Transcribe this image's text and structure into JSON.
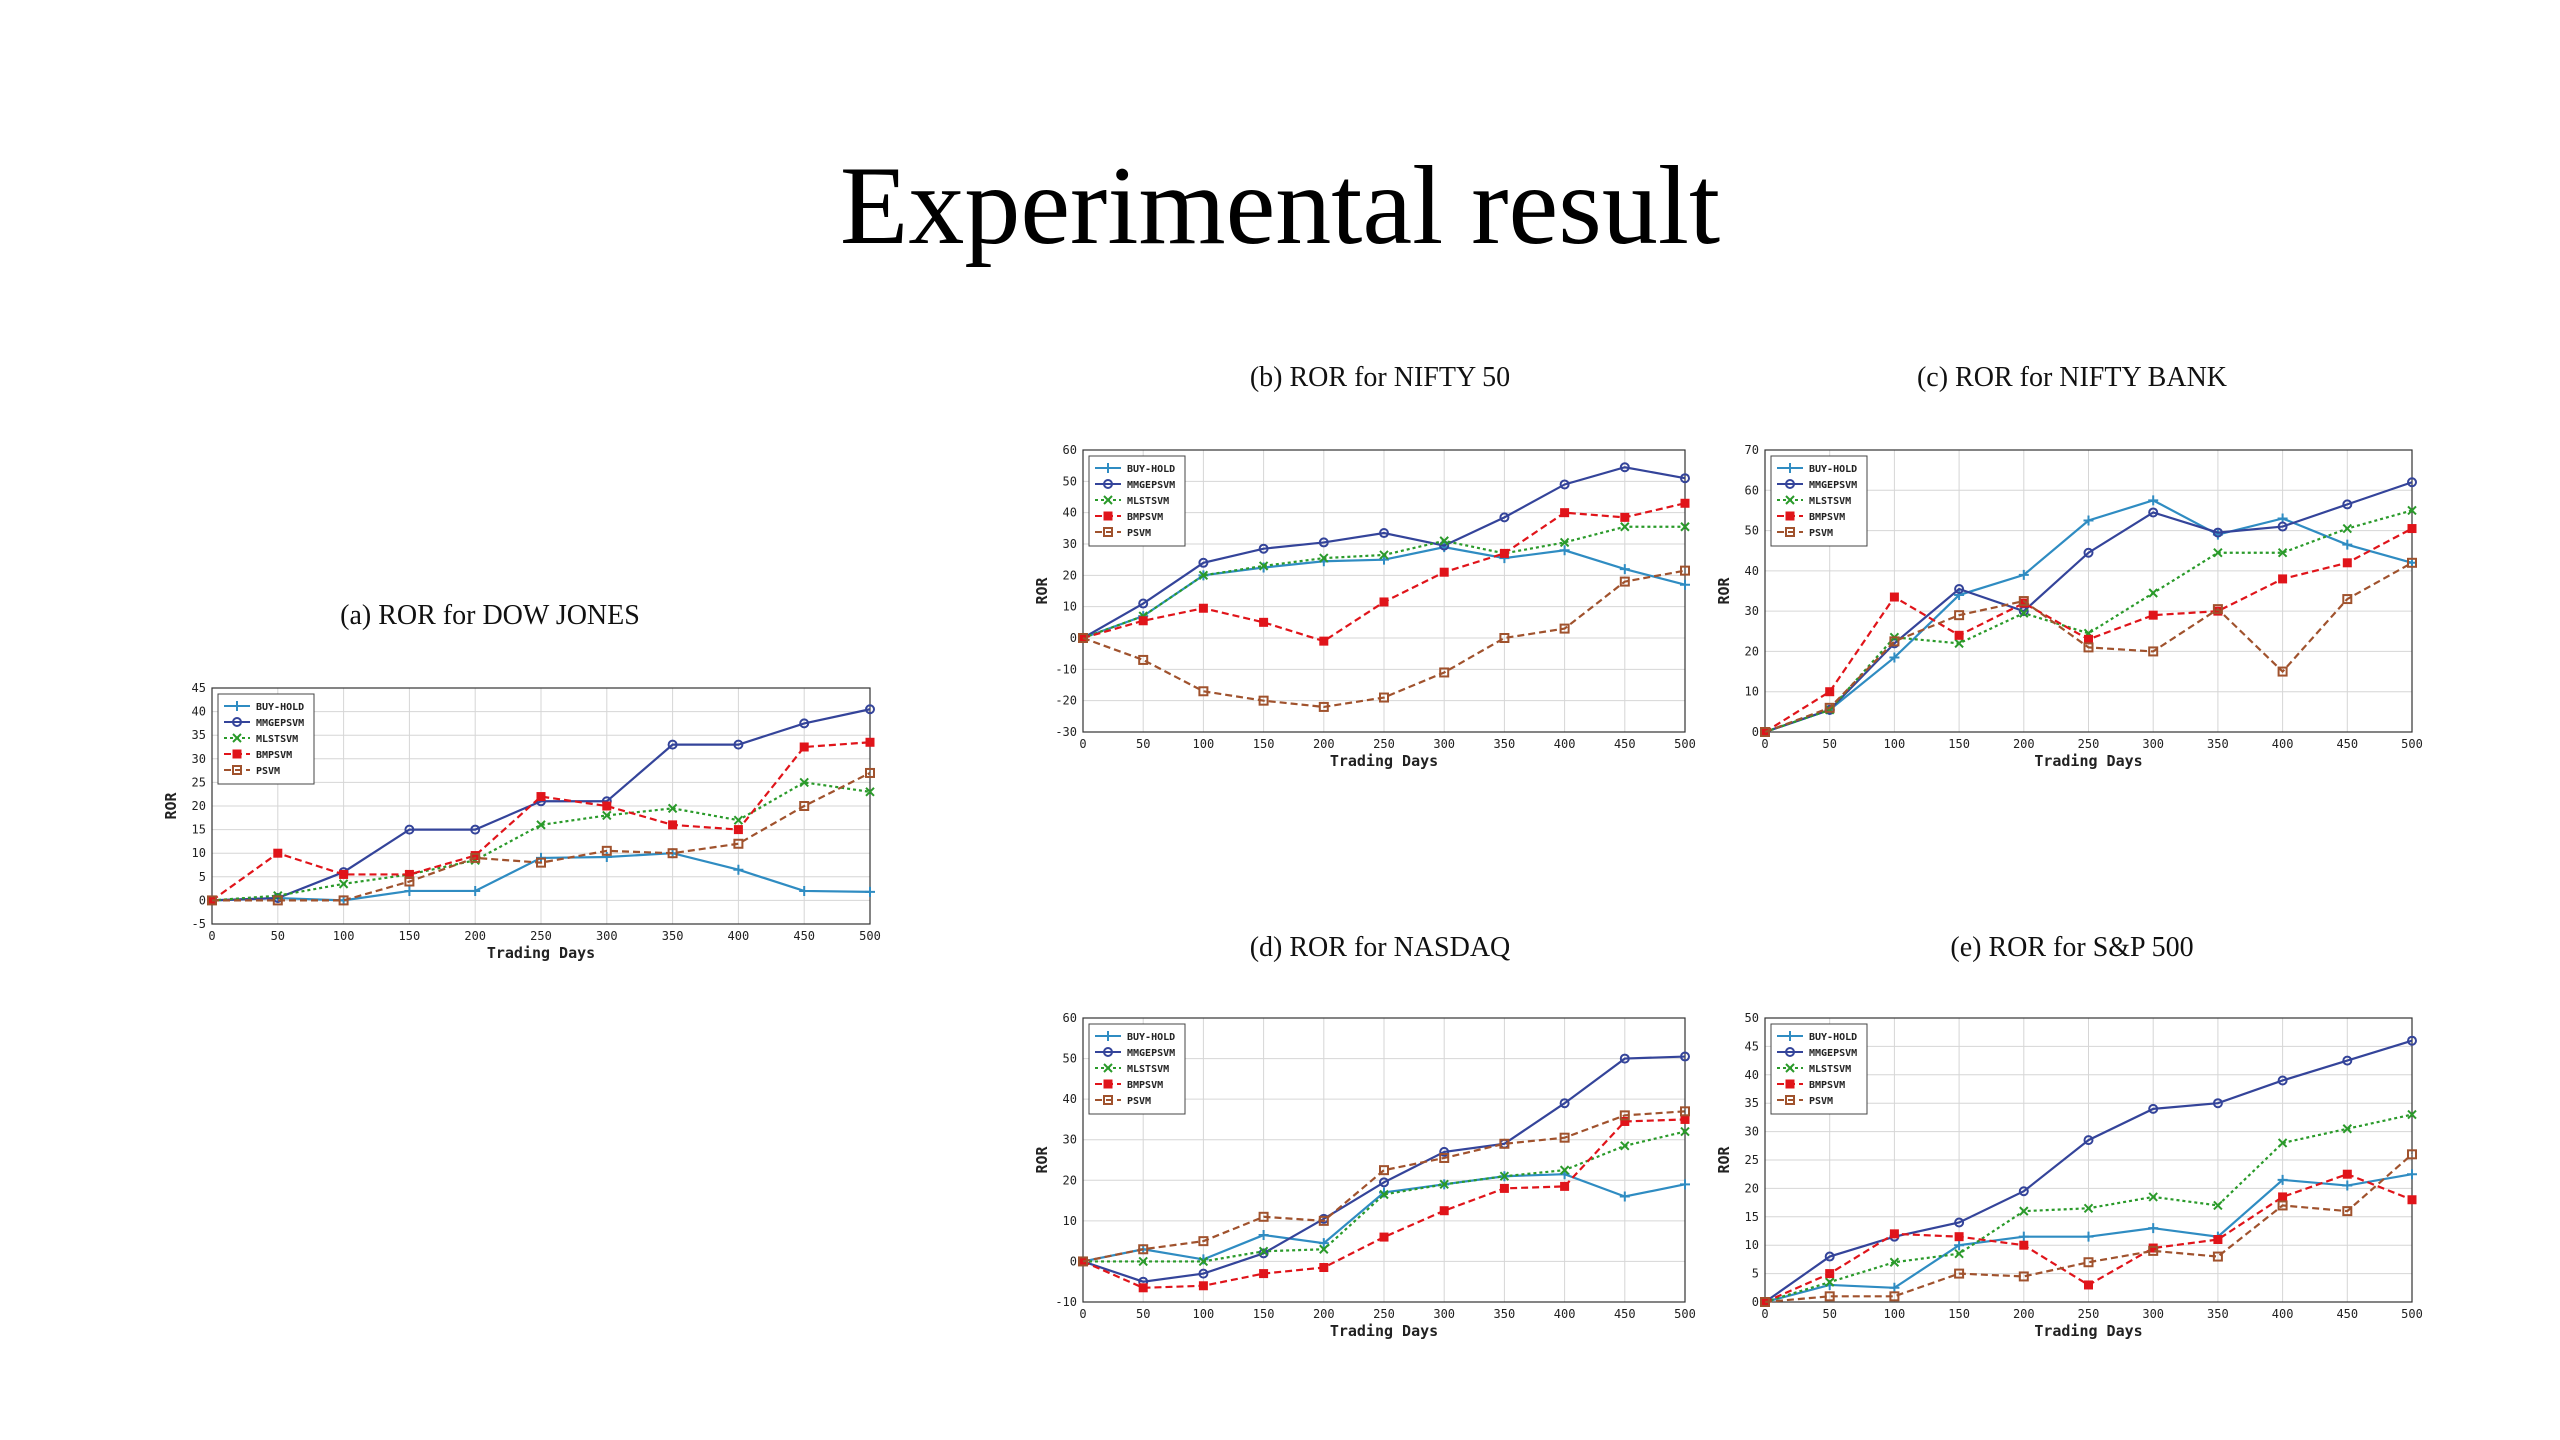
{
  "title": "Experimental result",
  "chart_data": [
    {
      "id": "dow",
      "type": "line",
      "title": "(a) ROR for DOW JONES",
      "xlabel": "Trading Days",
      "ylabel": "ROR",
      "grid": true,
      "legend": "top-left",
      "x": [
        0,
        50,
        100,
        150,
        200,
        250,
        300,
        350,
        400,
        450,
        500
      ],
      "xlim": [
        0,
        500
      ],
      "ylim": [
        -5,
        45
      ],
      "yticks": [
        -5,
        0,
        5,
        10,
        15,
        20,
        25,
        30,
        35,
        40,
        45
      ],
      "series": [
        {
          "name": "BUY-HOLD",
          "color": "#2f8cc2",
          "dash": "solid",
          "marker": "plus",
          "values": [
            0,
            0.5,
            0,
            2,
            2,
            9,
            9.2,
            10,
            6.5,
            2,
            1.8
          ]
        },
        {
          "name": "MMGEPSVM",
          "color": "#34449a",
          "dash": "solid",
          "marker": "circle",
          "values": [
            0,
            0.5,
            6,
            15,
            15,
            21,
            21,
            33,
            33,
            37.5,
            40.5
          ]
        },
        {
          "name": "MLSTSVM",
          "color": "#2a9a2a",
          "dash": "dotted",
          "marker": "x",
          "values": [
            0,
            1,
            3.5,
            5.5,
            8.5,
            16,
            18,
            19.5,
            17,
            25,
            23
          ]
        },
        {
          "name": "BMPSVM",
          "color": "#e0141a",
          "dash": "dashed",
          "marker": "square",
          "values": [
            0,
            10,
            5.5,
            5.5,
            9.5,
            22,
            20,
            16,
            15,
            32.5,
            33.5
          ]
        },
        {
          "name": "PSVM",
          "color": "#a0522d",
          "dash": "dashed",
          "marker": "square-open",
          "values": [
            0,
            0,
            0,
            4,
            9,
            8,
            10.5,
            10,
            12,
            20,
            27
          ]
        }
      ]
    },
    {
      "id": "nifty50",
      "type": "line",
      "title": "(b) ROR for NIFTY 50",
      "xlabel": "Trading Days",
      "ylabel": "ROR",
      "grid": true,
      "legend": "top-left",
      "x": [
        0,
        50,
        100,
        150,
        200,
        250,
        300,
        350,
        400,
        450,
        500
      ],
      "xlim": [
        0,
        500
      ],
      "ylim": [
        -30,
        60
      ],
      "yticks": [
        -30,
        -20,
        -10,
        0,
        10,
        20,
        30,
        40,
        50,
        60
      ],
      "series": [
        {
          "name": "BUY-HOLD",
          "color": "#2f8cc2",
          "dash": "solid",
          "marker": "plus",
          "values": [
            0,
            7,
            20,
            22.5,
            24.5,
            25,
            29,
            25.5,
            28,
            22,
            17
          ]
        },
        {
          "name": "MMGEPSVM",
          "color": "#34449a",
          "dash": "solid",
          "marker": "circle",
          "values": [
            0,
            11,
            24,
            28.5,
            30.5,
            33.5,
            29.5,
            38.5,
            49,
            54.5,
            51
          ]
        },
        {
          "name": "MLSTSVM",
          "color": "#2a9a2a",
          "dash": "dotted",
          "marker": "x",
          "values": [
            0,
            7,
            20,
            23,
            25.5,
            26.5,
            31,
            27,
            30.5,
            35.5,
            35.5
          ]
        },
        {
          "name": "BMPSVM",
          "color": "#e0141a",
          "dash": "dashed",
          "marker": "square",
          "values": [
            0,
            5.5,
            9.5,
            5,
            -1,
            11.5,
            21,
            27,
            40,
            38.5,
            43
          ]
        },
        {
          "name": "PSVM",
          "color": "#a0522d",
          "dash": "dashed",
          "marker": "square-open",
          "values": [
            0,
            -7,
            -17,
            -20,
            -22,
            -19,
            -11,
            0,
            3,
            18,
            21.5
          ]
        }
      ]
    },
    {
      "id": "niftybank",
      "type": "line",
      "title": "(c) ROR for NIFTY BANK",
      "xlabel": "Trading Days",
      "ylabel": "ROR",
      "grid": true,
      "legend": "top-left",
      "x": [
        0,
        50,
        100,
        150,
        200,
        250,
        300,
        350,
        400,
        450,
        500
      ],
      "xlim": [
        0,
        500
      ],
      "ylim": [
        0,
        70
      ],
      "yticks": [
        0,
        10,
        20,
        30,
        40,
        50,
        60,
        70
      ],
      "series": [
        {
          "name": "BUY-HOLD",
          "color": "#2f8cc2",
          "dash": "solid",
          "marker": "plus",
          "values": [
            0,
            5.5,
            18.5,
            34,
            39,
            52.5,
            57.5,
            49,
            53,
            46.5,
            42
          ]
        },
        {
          "name": "MMGEPSVM",
          "color": "#34449a",
          "dash": "solid",
          "marker": "circle",
          "values": [
            0,
            5.5,
            22,
            35.5,
            30,
            44.5,
            54.5,
            49.5,
            51,
            56.5,
            62
          ]
        },
        {
          "name": "MLSTSVM",
          "color": "#2a9a2a",
          "dash": "dotted",
          "marker": "x",
          "values": [
            0,
            5.5,
            23.5,
            22,
            29.5,
            24.5,
            34.5,
            44.5,
            44.5,
            50.5,
            55
          ]
        },
        {
          "name": "BMPSVM",
          "color": "#e0141a",
          "dash": "dashed",
          "marker": "square",
          "values": [
            0,
            10,
            33.5,
            24,
            32,
            23,
            29,
            30,
            38,
            42,
            50.5
          ]
        },
        {
          "name": "PSVM",
          "color": "#a0522d",
          "dash": "dashed",
          "marker": "square-open",
          "values": [
            0,
            6,
            22.5,
            29,
            32.5,
            21,
            20,
            30.5,
            15,
            33,
            42
          ]
        }
      ]
    },
    {
      "id": "nasdaq",
      "type": "line",
      "title": "(d) ROR for NASDAQ",
      "xlabel": "Trading Days",
      "ylabel": "ROR",
      "grid": true,
      "legend": "top-left",
      "x": [
        0,
        50,
        100,
        150,
        200,
        250,
        300,
        350,
        400,
        450,
        500
      ],
      "xlim": [
        0,
        500
      ],
      "ylim": [
        -10,
        60
      ],
      "yticks": [
        -10,
        0,
        10,
        20,
        30,
        40,
        50,
        60
      ],
      "series": [
        {
          "name": "BUY-HOLD",
          "color": "#2f8cc2",
          "dash": "solid",
          "marker": "plus",
          "values": [
            0,
            3,
            0.5,
            6.5,
            4.5,
            17,
            19,
            21,
            21.5,
            16,
            19
          ]
        },
        {
          "name": "MMGEPSVM",
          "color": "#34449a",
          "dash": "solid",
          "marker": "circle",
          "values": [
            0,
            -5,
            -3,
            2,
            10.5,
            19.5,
            27,
            29,
            39,
            50,
            50.5
          ]
        },
        {
          "name": "MLSTSVM",
          "color": "#2a9a2a",
          "dash": "dotted",
          "marker": "x",
          "values": [
            0,
            0,
            0,
            2.5,
            3,
            16.5,
            19,
            21,
            22.5,
            28.5,
            32
          ]
        },
        {
          "name": "BMPSVM",
          "color": "#e0141a",
          "dash": "dashed",
          "marker": "square",
          "values": [
            0,
            -6.5,
            -6,
            -3,
            -1.5,
            6,
            12.5,
            18,
            18.5,
            34.5,
            35
          ]
        },
        {
          "name": "PSVM",
          "color": "#a0522d",
          "dash": "dashed",
          "marker": "square-open",
          "values": [
            0,
            3,
            5,
            11,
            10,
            22.5,
            25.5,
            29,
            30.5,
            36,
            37
          ]
        }
      ]
    },
    {
      "id": "sp500",
      "type": "line",
      "title": "(e) ROR for S&P 500",
      "xlabel": "Trading Days",
      "ylabel": "ROR",
      "grid": true,
      "legend": "top-left",
      "x": [
        0,
        50,
        100,
        150,
        200,
        250,
        300,
        350,
        400,
        450,
        500
      ],
      "xlim": [
        0,
        500
      ],
      "ylim": [
        0,
        50
      ],
      "yticks": [
        0,
        5,
        10,
        15,
        20,
        25,
        30,
        35,
        40,
        45,
        50
      ],
      "series": [
        {
          "name": "BUY-HOLD",
          "color": "#2f8cc2",
          "dash": "solid",
          "marker": "plus",
          "values": [
            0,
            3,
            2.5,
            10,
            11.5,
            11.5,
            13,
            11.5,
            21.5,
            20.5,
            22.5
          ]
        },
        {
          "name": "MMGEPSVM",
          "color": "#34449a",
          "dash": "solid",
          "marker": "circle",
          "values": [
            0,
            8,
            11.5,
            14,
            19.5,
            28.5,
            34,
            35,
            39,
            42.5,
            46
          ]
        },
        {
          "name": "MLSTSVM",
          "color": "#2a9a2a",
          "dash": "dotted",
          "marker": "x",
          "values": [
            0,
            3.5,
            7,
            8.5,
            16,
            16.5,
            18.5,
            17,
            28,
            30.5,
            33
          ]
        },
        {
          "name": "BMPSVM",
          "color": "#e0141a",
          "dash": "dashed",
          "marker": "square",
          "values": [
            0,
            5,
            12,
            11.5,
            10,
            3,
            9.5,
            11,
            18.5,
            22.5,
            18
          ]
        },
        {
          "name": "PSVM",
          "color": "#a0522d",
          "dash": "dashed",
          "marker": "square-open",
          "values": [
            0,
            1,
            1,
            5,
            4.5,
            7,
            9,
            8,
            17,
            16,
            26
          ]
        }
      ]
    }
  ]
}
